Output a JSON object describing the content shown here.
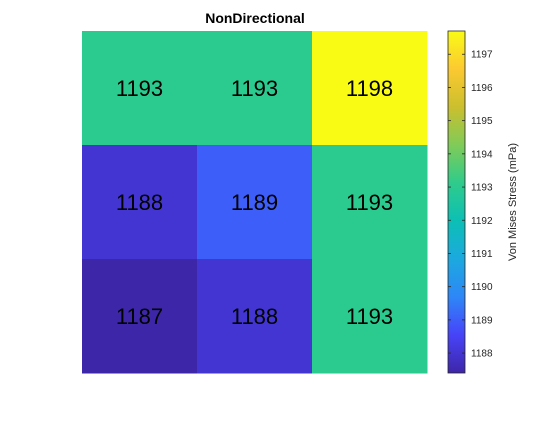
{
  "chart_data": {
    "type": "heatmap",
    "title": "NonDirectional",
    "colorbar_label": "Von Mises Stress  (mPa)",
    "rows": 3,
    "cols": 3,
    "values": [
      [
        1193,
        1193,
        1198
      ],
      [
        1188,
        1189,
        1193
      ],
      [
        1187,
        1188,
        1193
      ]
    ],
    "cell_labels": [
      [
        "1193",
        "1193",
        "1198"
      ],
      [
        "1188",
        "1189",
        "1193"
      ],
      [
        "1187",
        "1188",
        "1193"
      ]
    ],
    "color_range": [
      1187.4,
      1197.7
    ],
    "colorbar_ticks": [
      1188,
      1189,
      1190,
      1191,
      1192,
      1193,
      1194,
      1195,
      1196,
      1197
    ],
    "colorbar_tick_labels": [
      "1188",
      "1189",
      "1190",
      "1191",
      "1192",
      "1193",
      "1194",
      "1195",
      "1196",
      "1197"
    ],
    "colormap": "parula",
    "colormap_stops": [
      "#3e26a8",
      "#4743f8",
      "#2e87f7",
      "#1ca9df",
      "#0cbfb5",
      "#2fcb8b",
      "#80cb58",
      "#cbbf2e",
      "#fcc931",
      "#f9fb15"
    ],
    "cell_text_color": "#000000"
  }
}
